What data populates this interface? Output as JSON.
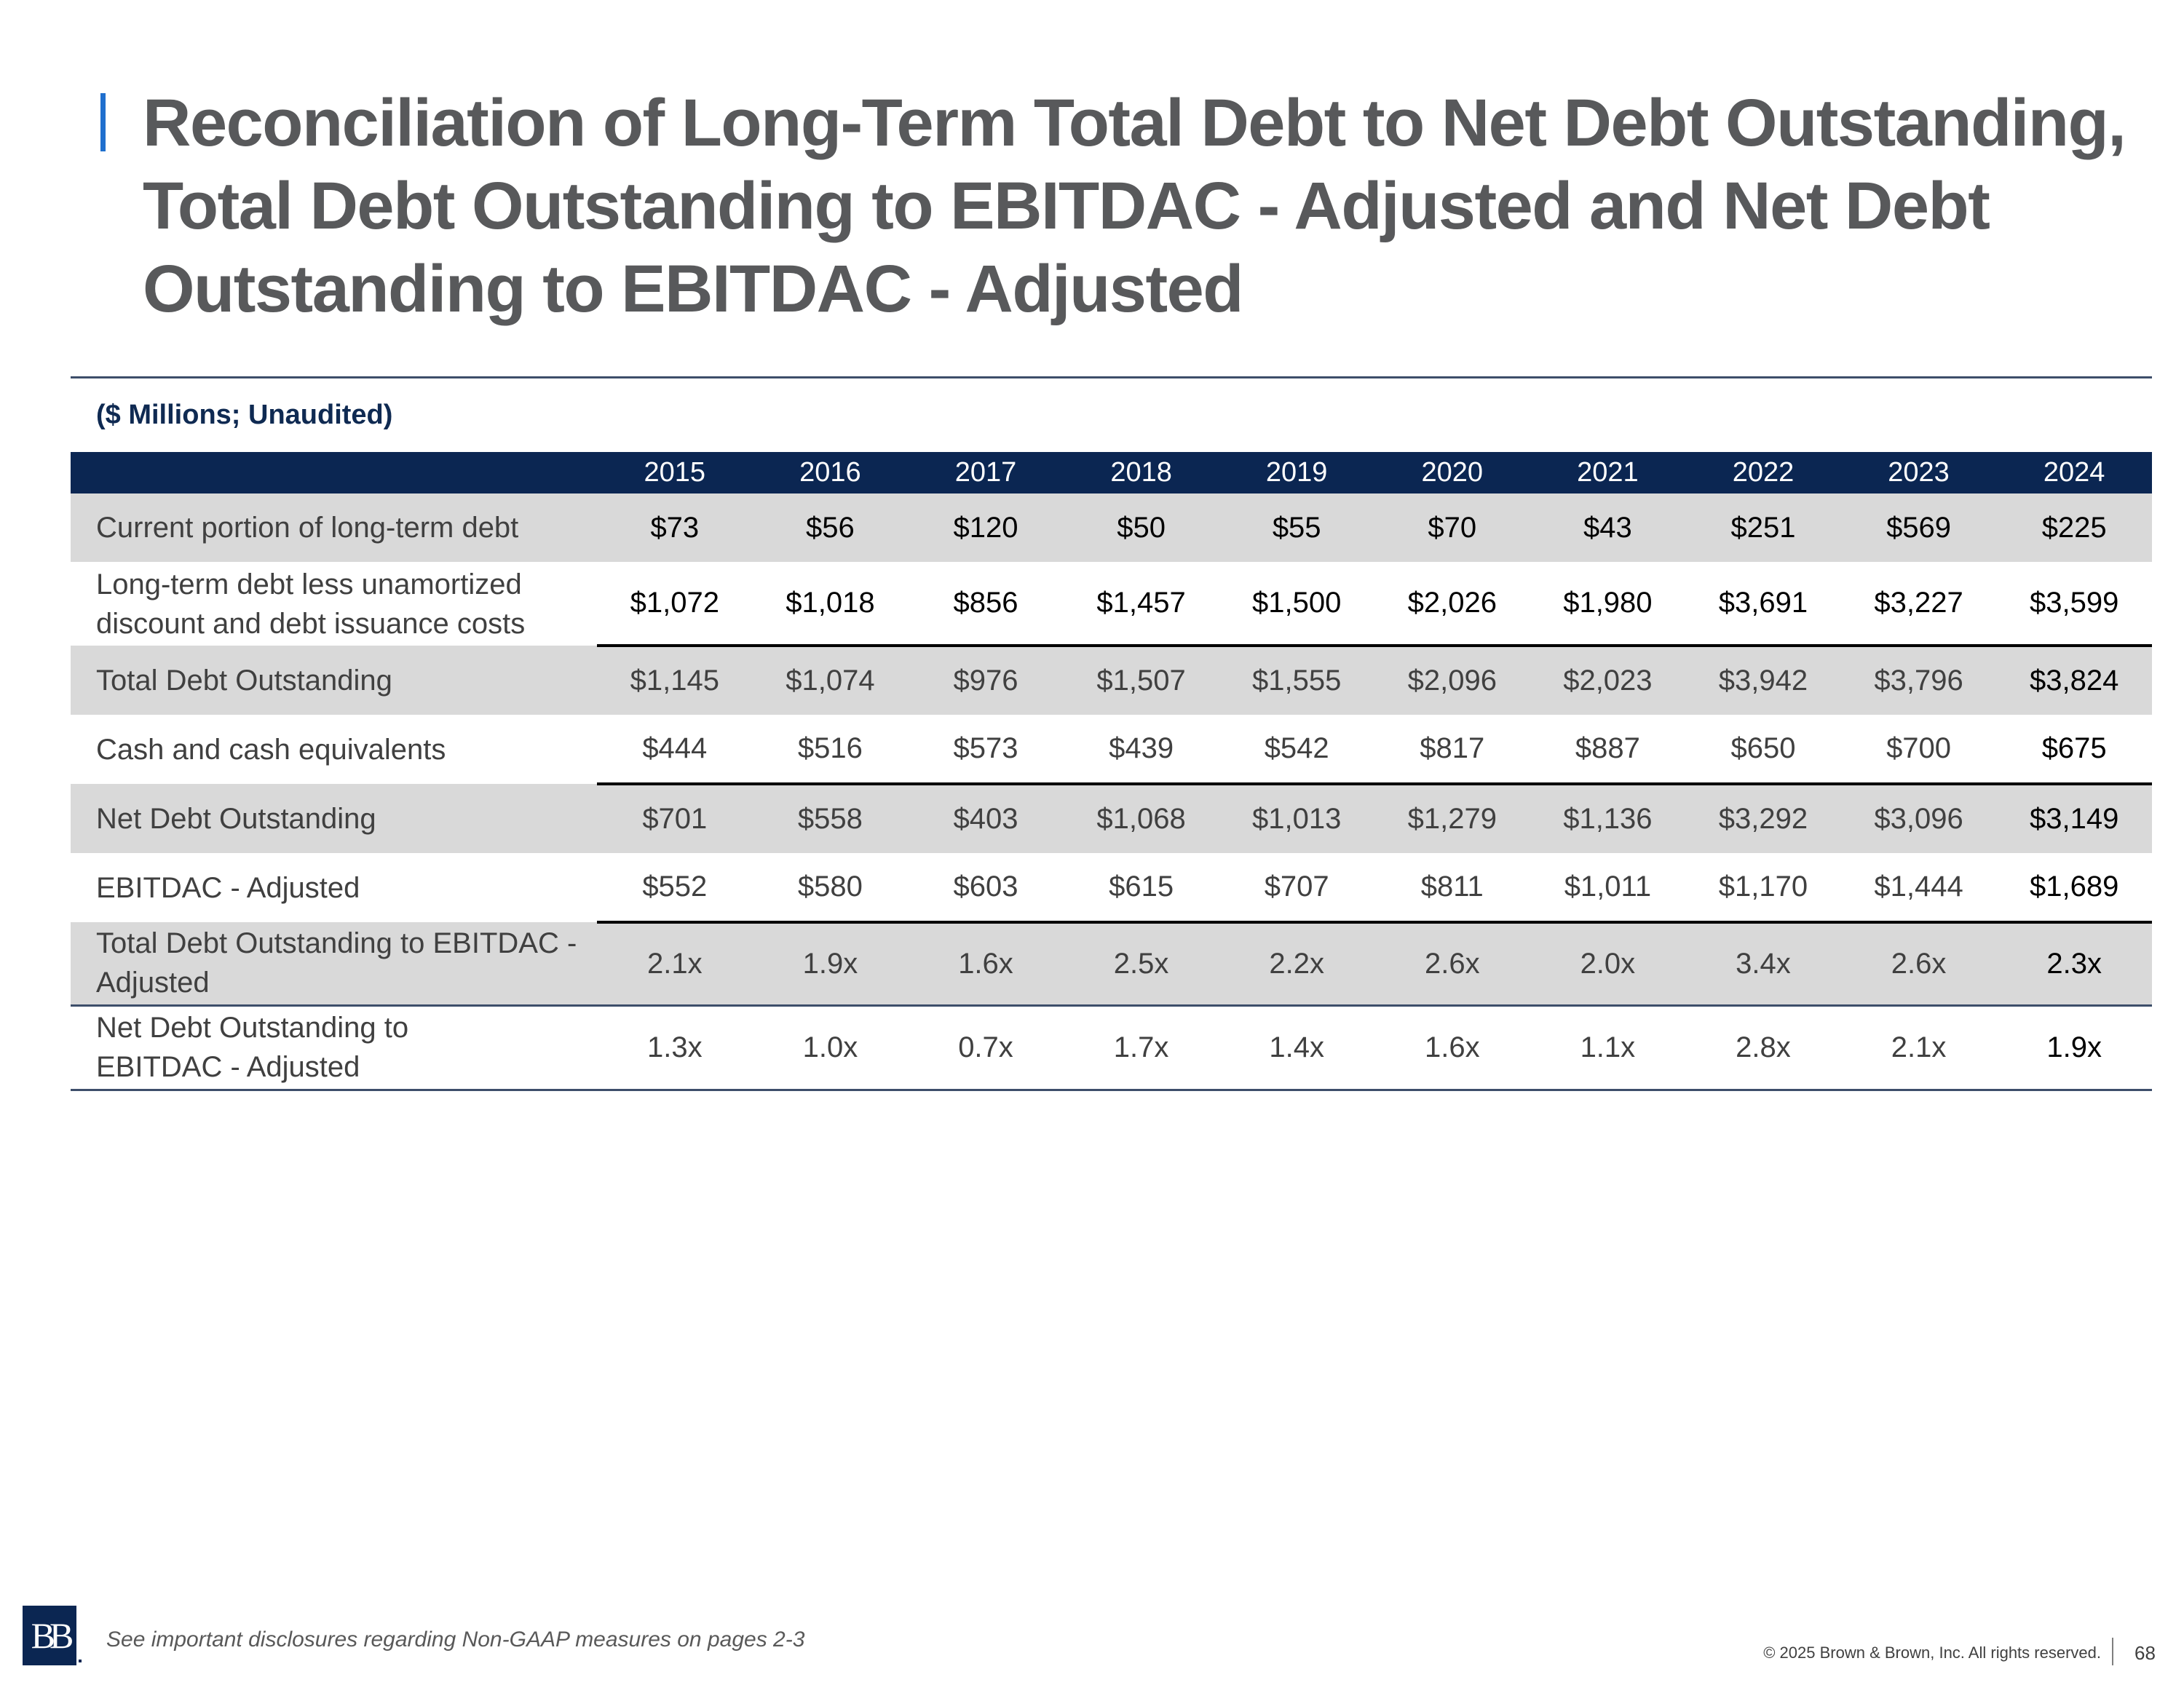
{
  "title": "Reconciliation of Long-Term Total Debt to Net Debt Outstanding, Total Debt Outstanding to EBITDAC - Adjusted and Net Debt Outstanding to EBITDAC - Adjusted",
  "subtitle": "($ Millions; Unaudited)",
  "table": {
    "years": [
      "2015",
      "2016",
      "2017",
      "2018",
      "2019",
      "2020",
      "2021",
      "2022",
      "2023",
      "2024"
    ],
    "rows": [
      {
        "label": "Current portion of long-term debt",
        "values": [
          "$73",
          "$56",
          "$120",
          "$50",
          "$55",
          "$70",
          "$43",
          "$251",
          "$569",
          "$225"
        ]
      },
      {
        "label": "Long-term debt less unamortized discount and debt issuance costs",
        "values": [
          "$1,072",
          "$1,018",
          "$856",
          "$1,457",
          "$1,500",
          "$2,026",
          "$1,980",
          "$3,691",
          "$3,227",
          "$3,599"
        ]
      },
      {
        "label": "Total Debt Outstanding",
        "values": [
          "$1,145",
          "$1,074",
          "$976",
          "$1,507",
          "$1,555",
          "$2,096",
          "$2,023",
          "$3,942",
          "$3,796",
          "$3,824"
        ]
      },
      {
        "label": "Cash and cash equivalents",
        "values": [
          "$444",
          "$516",
          "$573",
          "$439",
          "$542",
          "$817",
          "$887",
          "$650",
          "$700",
          "$675"
        ]
      },
      {
        "label": "Net Debt Outstanding",
        "values": [
          "$701",
          "$558",
          "$403",
          "$1,068",
          "$1,013",
          "$1,279",
          "$1,136",
          "$3,292",
          "$3,096",
          "$3,149"
        ]
      },
      {
        "label": "EBITDAC - Adjusted",
        "values": [
          "$552",
          "$580",
          "$603",
          "$615",
          "$707",
          "$811",
          "$1,011",
          "$1,170",
          "$1,444",
          "$1,689"
        ]
      },
      {
        "label": "Total Debt Outstanding to EBITDAC - Adjusted",
        "values": [
          "2.1x",
          "1.9x",
          "1.6x",
          "2.5x",
          "2.2x",
          "2.6x",
          "2.0x",
          "3.4x",
          "2.6x",
          "2.3x"
        ]
      },
      {
        "label": "Net Debt Outstanding to EBITDAC - Adjusted",
        "values": [
          "1.3x",
          "1.0x",
          "0.7x",
          "1.7x",
          "1.4x",
          "1.6x",
          "1.1x",
          "2.8x",
          "2.1x",
          "1.9x"
        ]
      }
    ]
  },
  "footer": {
    "logo_text": "BB",
    "disclosure": "See important disclosures regarding Non-GAAP measures on pages 2-3",
    "copyright": "© 2025 Brown & Brown, Inc. All rights reserved.",
    "page_number": "68"
  },
  "colors": {
    "title_accent": "#1f6fce",
    "header_fill": "#0b2652",
    "row_shade": "#d9d9d9",
    "title_text": "#58595b"
  }
}
